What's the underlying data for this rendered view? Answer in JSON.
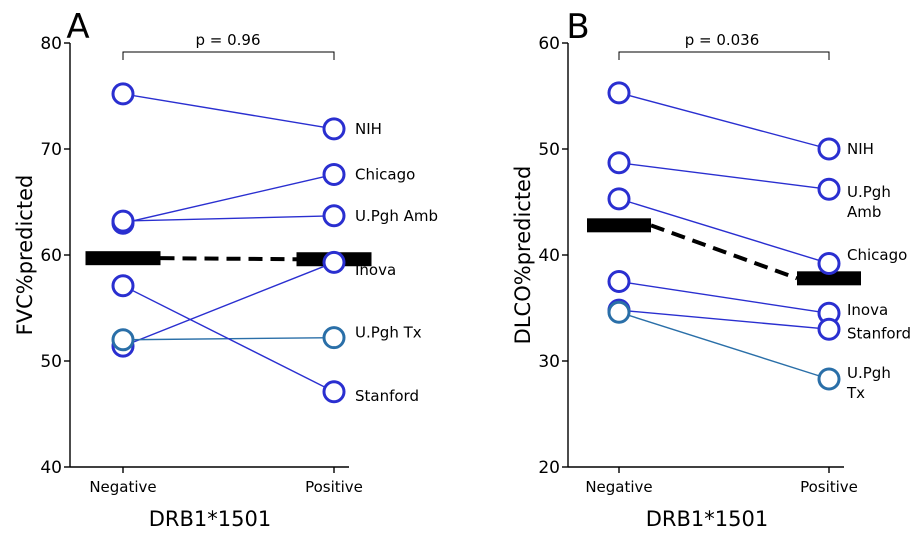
{
  "colors": {
    "line_blue": "#2a2fd0",
    "line_teal": "#2a6fa8",
    "mean": "#000000"
  },
  "chart_data": [
    {
      "type": "scatter",
      "panel": "A",
      "p_value": "p = 0.96",
      "xlabel": "DRB1*1501",
      "ylabel": "FVC%predicted",
      "categories": [
        "Negative",
        "Positive"
      ],
      "ylim": [
        40,
        80
      ],
      "yticks": [
        40,
        50,
        60,
        70,
        80
      ],
      "series": [
        {
          "name": "NIH",
          "values": [
            75.2,
            71.9
          ],
          "color": "blue"
        },
        {
          "name": "Chicago",
          "values": [
            63.0,
            67.6
          ],
          "color": "blue"
        },
        {
          "name": "U.Pgh Amb",
          "values": [
            63.2,
            63.7
          ],
          "color": "blue"
        },
        {
          "name": "Inova",
          "values": [
            51.4,
            59.3
          ],
          "color": "blue"
        },
        {
          "name": "U.Pgh Tx",
          "values": [
            52.0,
            52.2
          ],
          "color": "teal"
        },
        {
          "name": "Stanford",
          "values": [
            57.1,
            47.1
          ],
          "color": "blue"
        }
      ],
      "label_lines": [
        [
          "NIH"
        ],
        [
          "Chicago"
        ],
        [
          "U.Pgh Amb"
        ],
        [
          "Inova"
        ],
        [
          "U.Pgh Tx"
        ],
        [
          "Stanford"
        ]
      ],
      "label_y": [
        71.9,
        67.6,
        63.7,
        58.6,
        52.7,
        46.7
      ],
      "means": [
        59.7,
        59.6
      ]
    },
    {
      "type": "scatter",
      "panel": "B",
      "p_value": "p = 0.036",
      "xlabel": "DRB1*1501",
      "ylabel": "DLCO%predicted",
      "categories": [
        "Negative",
        "Positive"
      ],
      "ylim": [
        20,
        60
      ],
      "yticks": [
        20,
        30,
        40,
        50,
        60
      ],
      "series": [
        {
          "name": "NIH",
          "values": [
            55.3,
            50.0
          ],
          "color": "blue"
        },
        {
          "name": "U.Pgh Amb",
          "values": [
            48.7,
            46.2
          ],
          "color": "blue"
        },
        {
          "name": "Chicago",
          "values": [
            45.3,
            39.2
          ],
          "color": "blue"
        },
        {
          "name": "Inova",
          "values": [
            37.5,
            34.5
          ],
          "color": "blue"
        },
        {
          "name": "Stanford",
          "values": [
            34.8,
            33.0
          ],
          "color": "blue"
        },
        {
          "name": "U.Pgh Tx",
          "values": [
            34.6,
            28.3
          ],
          "color": "teal"
        }
      ],
      "label_lines": [
        [
          "NIH"
        ],
        [
          "U.Pgh",
          "Amb"
        ],
        [
          "Chicago"
        ],
        [
          "Inova"
        ],
        [
          "Stanford"
        ],
        [
          "U.Pgh",
          "Tx"
        ]
      ],
      "label_y": [
        50.0,
        45.3,
        40.0,
        34.8,
        32.6,
        28.2
      ],
      "means": [
        42.8,
        37.8
      ]
    }
  ]
}
